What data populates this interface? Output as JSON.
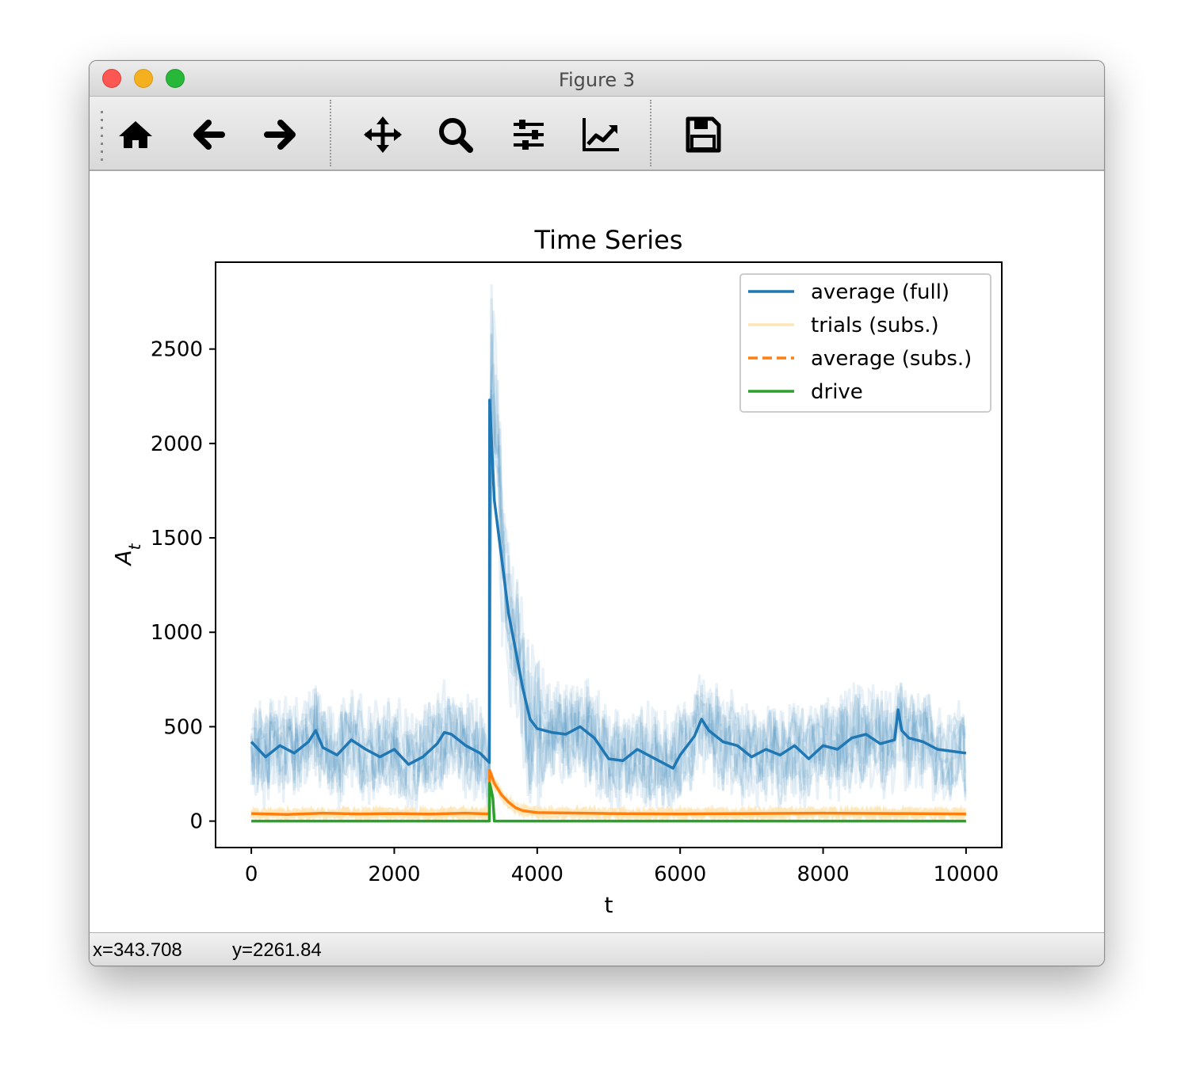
{
  "window": {
    "title": "Figure 3"
  },
  "toolbar": {
    "items": [
      "home-icon",
      "back-arrow-icon",
      "forward-arrow-icon",
      "pan-move-icon",
      "zoom-magnifier-icon",
      "subplots-sliders-icon",
      "edit-axes-chart-icon",
      "save-floppy-icon"
    ]
  },
  "status": {
    "x": "x=343.708",
    "y": "y=2261.84"
  },
  "colors": {
    "full": "#1f77b4",
    "subs": "#ff7f0e",
    "trials_subs": "#fde5b5",
    "drive": "#2ca02c"
  },
  "chart_data": {
    "type": "line",
    "title": "Time Series",
    "xlabel": "t",
    "ylabel": "A_t",
    "xlim": [
      -500,
      10500
    ],
    "ylim": [
      -140,
      2960
    ],
    "xticks": [
      0,
      2000,
      4000,
      6000,
      8000,
      10000
    ],
    "yticks": [
      0,
      500,
      1000,
      1500,
      2000,
      2500
    ],
    "grid": false,
    "legend_position": "top-right",
    "series": [
      {
        "name": "average (full)",
        "style": "solid",
        "color": "#1f77b4",
        "x": [
          0,
          200,
          400,
          600,
          800,
          900,
          1000,
          1200,
          1400,
          1600,
          1800,
          2000,
          2200,
          2400,
          2600,
          2700,
          2800,
          3000,
          3200,
          3330,
          3335,
          3400,
          3500,
          3600,
          3700,
          3800,
          3900,
          4000,
          4200,
          4400,
          4600,
          4800,
          5000,
          5200,
          5400,
          5600,
          5800,
          5900,
          6000,
          6200,
          6300,
          6400,
          6600,
          6800,
          7000,
          7200,
          7400,
          7600,
          7800,
          8000,
          8200,
          8400,
          8600,
          8800,
          9000,
          9050,
          9100,
          9200,
          9400,
          9600,
          9800,
          10000
        ],
        "y": [
          420,
          340,
          400,
          360,
          420,
          480,
          390,
          350,
          430,
          380,
          340,
          380,
          300,
          340,
          410,
          470,
          460,
          400,
          360,
          310,
          2230,
          1700,
          1400,
          1100,
          900,
          700,
          540,
          490,
          470,
          460,
          500,
          440,
          330,
          320,
          380,
          340,
          300,
          280,
          350,
          450,
          540,
          480,
          420,
          400,
          340,
          380,
          350,
          400,
          330,
          400,
          380,
          440,
          460,
          410,
          430,
          590,
          480,
          440,
          420,
          380,
          370,
          360
        ]
      },
      {
        "name": "trials (subs.)",
        "style": "solid",
        "color": "#fde5b5"
      },
      {
        "name": "average (subs.)",
        "style": "dashed",
        "color": "#ff7f0e",
        "x": [
          0,
          500,
          1000,
          1500,
          2000,
          2500,
          3000,
          3330,
          3335,
          3400,
          3500,
          3600,
          3700,
          3800,
          4000,
          5000,
          6000,
          7000,
          8000,
          9000,
          10000
        ],
        "y": [
          40,
          35,
          42,
          38,
          40,
          37,
          42,
          38,
          270,
          200,
          140,
          100,
          70,
          55,
          45,
          40,
          38,
          40,
          42,
          40,
          38
        ]
      },
      {
        "name": "drive",
        "style": "solid",
        "color": "#2ca02c",
        "x": [
          0,
          3330,
          3335,
          3360,
          3380,
          3390,
          3400,
          3410,
          10000
        ],
        "y": [
          0,
          0,
          200,
          160,
          120,
          60,
          0,
          0,
          0
        ]
      }
    ]
  }
}
